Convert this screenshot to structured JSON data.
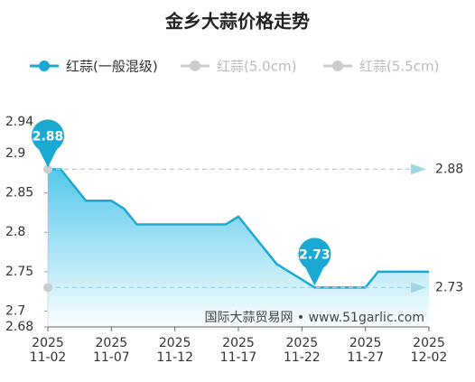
{
  "chart_data": {
    "type": "line",
    "title": "金乡大蒜价格走势",
    "legend": [
      {
        "name": "红蒜(一般混级)",
        "color": "#1aa9d3"
      },
      {
        "name": "红蒜(5.0cm)",
        "color": "#cccccc"
      },
      {
        "name": "红蒜(5.5cm)",
        "color": "#cccccc"
      }
    ],
    "categories": [
      "2025\n11-02",
      null,
      null,
      null,
      null,
      "2025\n11-07",
      null,
      null,
      null,
      null,
      "2025\n11-12",
      null,
      null,
      null,
      null,
      "2025\n11-17",
      null,
      null,
      null,
      null,
      "2025\n11-22",
      null,
      null,
      null,
      null,
      "2025\n11-27",
      null,
      null,
      null,
      null,
      "2025\n12-02"
    ],
    "series": [
      {
        "name": "红蒜(一般混级)",
        "color": "#1aa9d3",
        "values": [
          2.88,
          2.88,
          2.86,
          2.84,
          2.84,
          2.84,
          2.83,
          2.81,
          2.81,
          2.81,
          2.81,
          2.81,
          2.81,
          2.81,
          2.81,
          2.82,
          2.8,
          2.78,
          2.76,
          2.75,
          2.74,
          2.73,
          2.73,
          2.73,
          2.73,
          2.73,
          2.75,
          2.75,
          2.75,
          2.75,
          2.75
        ]
      }
    ],
    "ylim": [
      2.68,
      2.94
    ],
    "yticks": [
      2.94,
      2.9,
      2.85,
      2.8,
      2.75,
      2.7,
      2.68
    ],
    "watermark": "国际大蒜贸易网 • www.51garlic.com"
  }
}
